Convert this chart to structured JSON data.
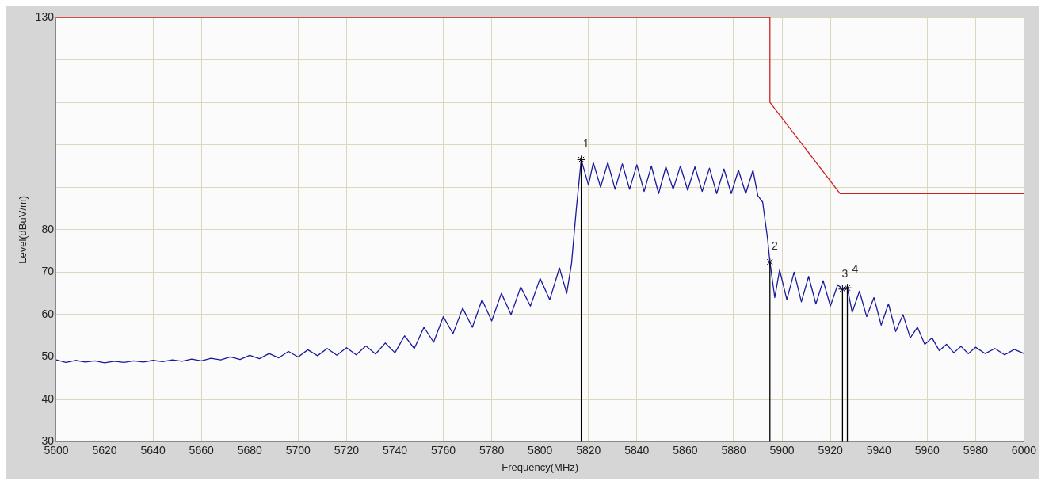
{
  "chart_data": {
    "type": "line",
    "xlabel": "Frequency(MHz)",
    "ylabel": "Level(dBuV/m)",
    "xlim": [
      5600,
      6000
    ],
    "xticks": [
      5600,
      5620,
      5640,
      5660,
      5680,
      5700,
      5720,
      5740,
      5760,
      5780,
      5800,
      5820,
      5840,
      5860,
      5880,
      5900,
      5920,
      5940,
      5960,
      5980,
      6000
    ],
    "ylim": [
      30,
      130
    ],
    "yticks": [
      30,
      40,
      50,
      60,
      70,
      80,
      {
        "value": 90,
        "label": null
      },
      {
        "value": 100,
        "label": null
      },
      {
        "value": 110,
        "label": null
      },
      {
        "value": 120,
        "label": null
      },
      130
    ],
    "grid": true,
    "legend": false,
    "marker": "none",
    "line_style": "solid",
    "series": [
      {
        "type": "line",
        "color": "#cc2020",
        "x": [
          5600,
          5895,
          5895,
          5924,
          6000
        ],
        "values": [
          130,
          130,
          110,
          88.5,
          88.5
        ]
      },
      {
        "type": "line",
        "color": "#1a1a9c",
        "x": [
          5600,
          5604,
          5608,
          5612,
          5616,
          5620,
          5624,
          5628,
          5632,
          5636,
          5640,
          5644,
          5648,
          5652,
          5656,
          5660,
          5664,
          5668,
          5672,
          5676,
          5680,
          5684,
          5688,
          5692,
          5696,
          5700,
          5704,
          5708,
          5712,
          5716,
          5720,
          5724,
          5728,
          5732,
          5736,
          5740,
          5744,
          5748,
          5752,
          5756,
          5760,
          5764,
          5768,
          5772,
          5776,
          5780,
          5784,
          5788,
          5792,
          5796,
          5800,
          5804,
          5808,
          5811,
          5813,
          5815,
          5817,
          5820,
          5822,
          5825,
          5828,
          5831,
          5834,
          5837,
          5840,
          5843,
          5846,
          5849,
          5852,
          5855,
          5858,
          5861,
          5864,
          5867,
          5870,
          5873,
          5876,
          5879,
          5882,
          5885,
          5888,
          5890,
          5892,
          5894,
          5895,
          5897,
          5899,
          5902,
          5905,
          5908,
          5911,
          5914,
          5917,
          5920,
          5923,
          5925,
          5927,
          5929,
          5932,
          5935,
          5938,
          5941,
          5944,
          5947,
          5950,
          5953,
          5956,
          5959,
          5962,
          5965,
          5968,
          5971,
          5974,
          5977,
          5980,
          5984,
          5988,
          5992,
          5996,
          6000
        ],
        "values": [
          49.3,
          48.7,
          49.2,
          48.8,
          49.1,
          48.6,
          49.0,
          48.7,
          49.1,
          48.8,
          49.2,
          48.9,
          49.3,
          49.0,
          49.5,
          49.1,
          49.7,
          49.3,
          50.0,
          49.4,
          50.4,
          49.6,
          50.8,
          49.8,
          51.3,
          50.0,
          51.7,
          50.3,
          52.0,
          50.4,
          52.2,
          50.5,
          52.6,
          50.7,
          53.3,
          51.0,
          55.0,
          52.0,
          57.0,
          53.5,
          59.5,
          55.5,
          61.5,
          57.0,
          63.5,
          58.5,
          65.0,
          60.0,
          66.5,
          62.0,
          68.5,
          63.5,
          71.0,
          65.0,
          72.0,
          85.0,
          96.5,
          90.5,
          95.8,
          90.0,
          95.8,
          89.5,
          95.5,
          89.5,
          95.3,
          89.0,
          95.0,
          88.5,
          94.8,
          89.5,
          95.0,
          89.3,
          94.8,
          89.0,
          94.5,
          88.5,
          94.3,
          88.5,
          94.0,
          88.5,
          94.0,
          88.0,
          86.5,
          78.0,
          72.4,
          64.0,
          70.5,
          63.5,
          70.0,
          63.0,
          69.0,
          62.5,
          68.0,
          62.0,
          67.0,
          66.0,
          66.3,
          60.5,
          65.5,
          59.5,
          64.0,
          57.5,
          62.5,
          56.0,
          60.0,
          54.5,
          57.0,
          53.0,
          54.5,
          51.5,
          53.0,
          51.0,
          52.5,
          50.8,
          52.3,
          50.8,
          52.0,
          50.5,
          51.8,
          50.8
        ]
      },
      {
        "type": "lollipop",
        "marker": "cross",
        "color": "#000000",
        "x": [
          5817,
          5895,
          5925,
          5927
        ],
        "values": [
          96.5,
          72.4,
          66.0,
          66.3
        ]
      }
    ],
    "annotations": [
      {
        "text": "1",
        "x": 5817,
        "y": 96.5
      },
      {
        "text": "2",
        "x": 5895,
        "y": 72.4
      },
      {
        "text": "3",
        "x": 5925,
        "y": 66.0
      },
      {
        "text": "4",
        "x": 5927,
        "y": 66.3
      }
    ]
  }
}
